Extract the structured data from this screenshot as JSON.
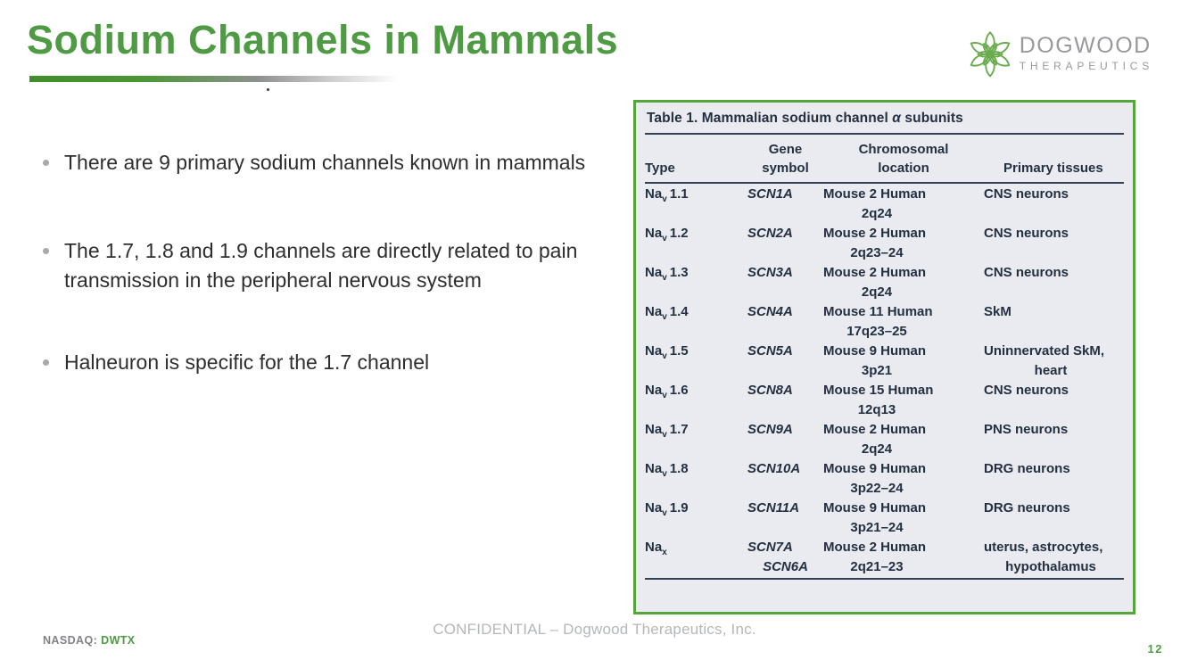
{
  "slide": {
    "title": "Sodium Channels in Mammals",
    "logo": {
      "line1": "DOGWOOD",
      "line2": "THERAPEUTICS"
    },
    "bullets": [
      "There are 9 primary sodium channels known in mammals",
      "The 1.7, 1.8 and 1.9 channels are directly related to pain transmission in the peripheral nervous system",
      "Halneuron is specific for the 1.7 channel"
    ],
    "table": {
      "title_prefix": "Table 1. Mammalian sodium channel ",
      "title_alpha": "α",
      "title_suffix": " subunits",
      "headers": [
        {
          "lines": [
            "Type"
          ]
        },
        {
          "lines": [
            "Gene",
            "symbol"
          ]
        },
        {
          "lines": [
            "Chromosomal",
            "location"
          ]
        },
        {
          "lines": [
            "Primary tissues"
          ]
        }
      ],
      "rows": [
        {
          "type": {
            "base": "Na",
            "sub": "v",
            "num": "1.1"
          },
          "gene": [
            "SCN1A"
          ],
          "location": [
            "Mouse 2 Human",
            "2q24"
          ],
          "tissues": [
            "CNS neurons"
          ]
        },
        {
          "type": {
            "base": "Na",
            "sub": "v",
            "num": "1.2"
          },
          "gene": [
            "SCN2A"
          ],
          "location": [
            "Mouse 2 Human",
            "2q23–24"
          ],
          "tissues": [
            "CNS neurons"
          ]
        },
        {
          "type": {
            "base": "Na",
            "sub": "v",
            "num": "1.3"
          },
          "gene": [
            "SCN3A"
          ],
          "location": [
            "Mouse 2 Human",
            "2q24"
          ],
          "tissues": [
            "CNS neurons"
          ]
        },
        {
          "type": {
            "base": "Na",
            "sub": "v",
            "num": "1.4"
          },
          "gene": [
            "SCN4A"
          ],
          "location": [
            "Mouse 11 Human",
            "17q23–25"
          ],
          "tissues": [
            "SkM"
          ]
        },
        {
          "type": {
            "base": "Na",
            "sub": "v",
            "num": "1.5"
          },
          "gene": [
            "SCN5A"
          ],
          "location": [
            "Mouse 9 Human",
            "3p21"
          ],
          "tissues": [
            "Uninnervated SkM,",
            "heart"
          ]
        },
        {
          "type": {
            "base": "Na",
            "sub": "v",
            "num": "1.6"
          },
          "gene": [
            "SCN8A"
          ],
          "location": [
            "Mouse 15 Human",
            "12q13"
          ],
          "tissues": [
            "CNS neurons"
          ]
        },
        {
          "type": {
            "base": "Na",
            "sub": "v",
            "num": "1.7"
          },
          "gene": [
            "SCN9A"
          ],
          "location": [
            "Mouse 2 Human",
            "2q24"
          ],
          "tissues": [
            "PNS neurons"
          ]
        },
        {
          "type": {
            "base": "Na",
            "sub": "v",
            "num": "1.8"
          },
          "gene": [
            "SCN10A"
          ],
          "location": [
            "Mouse 9 Human",
            "3p22–24"
          ],
          "tissues": [
            "DRG neurons"
          ]
        },
        {
          "type": {
            "base": "Na",
            "sub": "v",
            "num": "1.9"
          },
          "gene": [
            "SCN11A"
          ],
          "location": [
            "Mouse 9 Human",
            "3p21–24"
          ],
          "tissues": [
            "DRG neurons"
          ]
        },
        {
          "type": {
            "base": "Na",
            "sub": "x",
            "num": ""
          },
          "gene": [
            "SCN7A",
            "SCN6A"
          ],
          "location": [
            "Mouse 2 Human",
            "2q21–23"
          ],
          "tissues": [
            "uterus, astrocytes,",
            "hypothalamus"
          ]
        }
      ]
    },
    "footer": {
      "nasdaq_label": "NASDAQ:",
      "ticker": "DWTX",
      "confidential": "CONFIDENTIAL –  Dogwood Therapeutics, Inc.",
      "page": "12"
    },
    "colors": {
      "accent_green": "#4E9B43",
      "table_border_green": "#55A63A",
      "table_background": "#E9EBF0",
      "table_text": "#243040",
      "logo_gray": "#97999C",
      "footer_gray": "#808285",
      "confidential_gray": "#B4B7B9"
    }
  }
}
